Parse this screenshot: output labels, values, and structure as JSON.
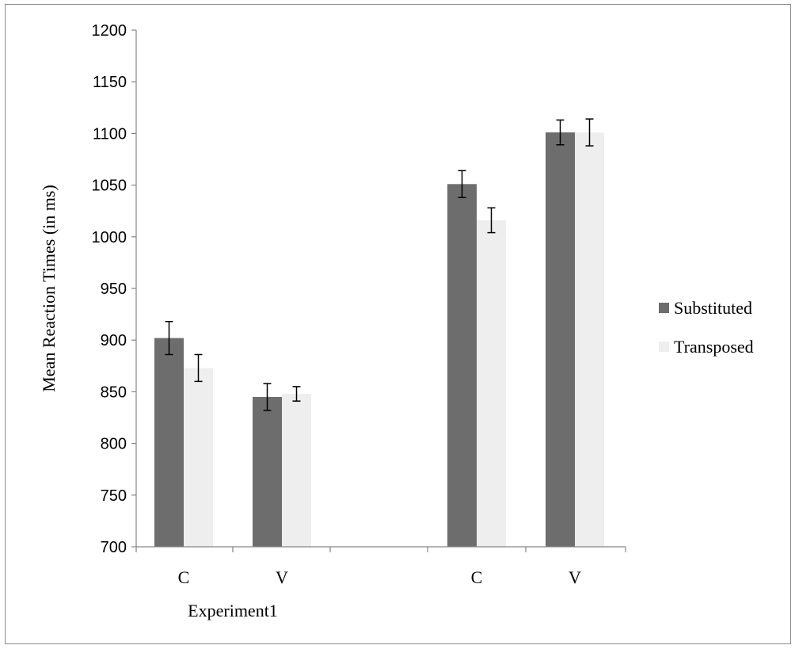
{
  "chart_data": {
    "type": "bar",
    "title": "",
    "ylabel": "Mean Reaction Times (in ms)",
    "ylim": [
      700,
      1200
    ],
    "yticks": [
      700,
      750,
      800,
      850,
      900,
      950,
      1000,
      1050,
      1100,
      1150,
      1200
    ],
    "grid": false,
    "legend_position": "right",
    "groups": [
      {
        "label": "Experiment1",
        "categories": [
          "C",
          "V"
        ]
      },
      {
        "label": "",
        "categories": [
          "C",
          "V"
        ]
      }
    ],
    "categories": [
      "C",
      "V",
      "C",
      "V"
    ],
    "series": [
      {
        "name": "Substituted",
        "color": "#6d6d6d",
        "values": [
          902,
          845,
          1051,
          1101
        ],
        "errors": [
          16,
          13,
          13,
          12
        ]
      },
      {
        "name": "Transposed",
        "color": "#eeeeee",
        "values": [
          873,
          848,
          1016,
          1101
        ],
        "errors": [
          13,
          7,
          12,
          13
        ]
      }
    ]
  }
}
